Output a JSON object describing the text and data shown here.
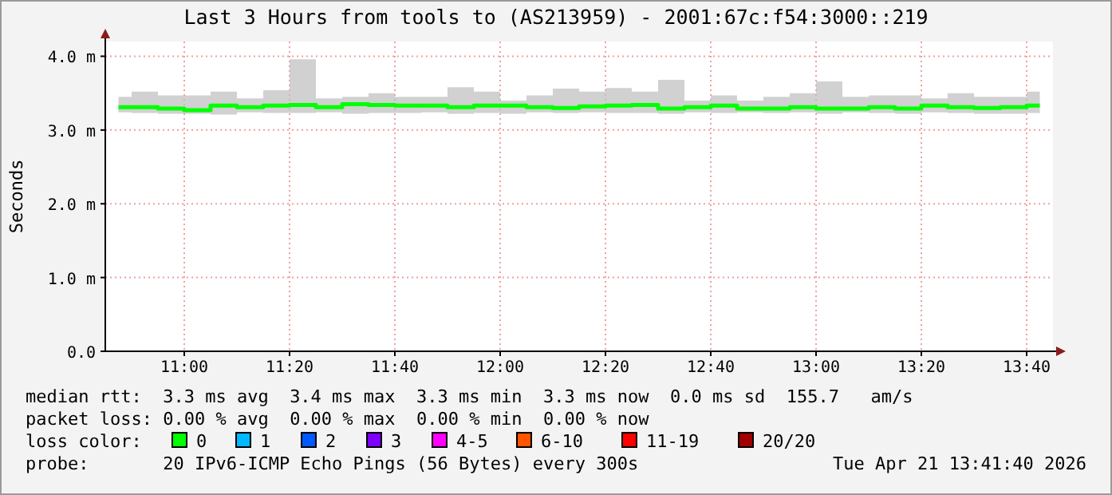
{
  "chart_data": {
    "type": "step",
    "title": "Last 3 Hours from tools to (AS213959) - 2001:67c:f54:3000::219",
    "ylabel": "Seconds",
    "legend_title": "loss color:",
    "legend": "bottom",
    "grid": true,
    "line_style": "solid",
    "xlim": [
      10.75,
      13.75
    ],
    "xticks": [
      {
        "value": 11,
        "label": "11:00"
      },
      {
        "value": 11.3333,
        "label": "11:20"
      },
      {
        "value": 11.6667,
        "label": "11:40"
      },
      {
        "value": 12,
        "label": "12:00"
      },
      {
        "value": 12.3333,
        "label": "12:20"
      },
      {
        "value": 12.6667,
        "label": "12:40"
      },
      {
        "value": 13,
        "label": "13:00"
      },
      {
        "value": 13.3333,
        "label": "13:20"
      },
      {
        "value": 13.6667,
        "label": "13:40"
      }
    ],
    "ylim": [
      0,
      4.2
    ],
    "yticks": [
      {
        "value": 0,
        "label": "0.0"
      },
      {
        "value": 1,
        "label": "1.0 m"
      },
      {
        "value": 2,
        "label": "2.0 m"
      },
      {
        "value": 3,
        "label": "3.0 m"
      },
      {
        "value": 4,
        "label": "4.0 m"
      }
    ],
    "x": [
      10.7917,
      10.875,
      10.9583,
      11.0417,
      11.125,
      11.2083,
      11.2917,
      11.375,
      11.4583,
      11.5417,
      11.625,
      11.7083,
      11.7917,
      11.875,
      11.9583,
      12.0417,
      12.125,
      12.2083,
      12.2917,
      12.375,
      12.4583,
      12.5417,
      12.625,
      12.7083,
      12.7917,
      12.875,
      12.9583,
      13.0417,
      13.125,
      13.2083,
      13.2917,
      13.375,
      13.4583,
      13.5417,
      13.625,
      13.7083
    ],
    "series": [
      {
        "name": "0",
        "color": "#00ff00",
        "values": [
          3.31,
          3.31,
          3.29,
          3.27,
          3.33,
          3.31,
          3.33,
          3.34,
          3.31,
          3.35,
          3.34,
          3.33,
          3.33,
          3.31,
          3.33,
          3.33,
          3.31,
          3.3,
          3.32,
          3.33,
          3.34,
          3.29,
          3.31,
          3.33,
          3.29,
          3.29,
          3.31,
          3.29,
          3.29,
          3.31,
          3.29,
          3.33,
          3.31,
          3.3,
          3.31,
          3.33
        ],
        "lower": [
          3.24,
          3.23,
          3.22,
          3.22,
          3.21,
          3.24,
          3.23,
          3.23,
          3.24,
          3.22,
          3.23,
          3.23,
          3.24,
          3.22,
          3.23,
          3.22,
          3.24,
          3.23,
          3.24,
          3.23,
          3.23,
          3.22,
          3.24,
          3.23,
          3.24,
          3.23,
          3.24,
          3.22,
          3.24,
          3.23,
          3.22,
          3.24,
          3.23,
          3.22,
          3.22,
          3.23
        ],
        "upper": [
          3.45,
          3.52,
          3.47,
          3.47,
          3.52,
          3.43,
          3.54,
          3.96,
          3.43,
          3.45,
          3.5,
          3.45,
          3.45,
          3.58,
          3.52,
          3.4,
          3.47,
          3.56,
          3.52,
          3.57,
          3.52,
          3.68,
          3.4,
          3.47,
          3.4,
          3.45,
          3.5,
          3.66,
          3.45,
          3.47,
          3.47,
          3.43,
          3.5,
          3.45,
          3.45,
          3.52
        ]
      },
      {
        "name": "1",
        "color": "#00b8ff",
        "values": [
          null,
          null,
          null,
          null,
          null,
          null,
          null,
          null,
          null,
          null,
          null,
          null,
          null,
          null,
          null,
          null,
          null,
          null,
          null,
          null,
          null,
          null,
          null,
          null,
          null,
          null,
          null,
          null,
          null,
          null,
          null,
          null,
          null,
          null,
          null,
          null
        ]
      },
      {
        "name": "2",
        "color": "#0059ff",
        "values": [
          null,
          null,
          null,
          null,
          null,
          null,
          null,
          null,
          null,
          null,
          null,
          null,
          null,
          null,
          null,
          null,
          null,
          null,
          null,
          null,
          null,
          null,
          null,
          null,
          null,
          null,
          null,
          null,
          null,
          null,
          null,
          null,
          null,
          null,
          null,
          null
        ]
      },
      {
        "name": "3",
        "color": "#7e00ff",
        "values": [
          null,
          null,
          null,
          null,
          null,
          null,
          null,
          null,
          null,
          null,
          null,
          null,
          null,
          null,
          null,
          null,
          null,
          null,
          null,
          null,
          null,
          null,
          null,
          null,
          null,
          null,
          null,
          null,
          null,
          null,
          null,
          null,
          null,
          null,
          null,
          null
        ]
      },
      {
        "name": "4-5",
        "color": "#ff00ff",
        "values": [
          null,
          null,
          null,
          null,
          null,
          null,
          null,
          null,
          null,
          null,
          null,
          null,
          null,
          null,
          null,
          null,
          null,
          null,
          null,
          null,
          null,
          null,
          null,
          null,
          null,
          null,
          null,
          null,
          null,
          null,
          null,
          null,
          null,
          null,
          null,
          null
        ]
      },
      {
        "name": "6-10",
        "color": "#ff5500",
        "values": [
          null,
          null,
          null,
          null,
          null,
          null,
          null,
          null,
          null,
          null,
          null,
          null,
          null,
          null,
          null,
          null,
          null,
          null,
          null,
          null,
          null,
          null,
          null,
          null,
          null,
          null,
          null,
          null,
          null,
          null,
          null,
          null,
          null,
          null,
          null,
          null
        ]
      },
      {
        "name": "11-19",
        "color": "#ff0000",
        "values": [
          null,
          null,
          null,
          null,
          null,
          null,
          null,
          null,
          null,
          null,
          null,
          null,
          null,
          null,
          null,
          null,
          null,
          null,
          null,
          null,
          null,
          null,
          null,
          null,
          null,
          null,
          null,
          null,
          null,
          null,
          null,
          null,
          null,
          null,
          null,
          null
        ]
      },
      {
        "name": "20/20",
        "color": "#a10000",
        "values": [
          null,
          null,
          null,
          null,
          null,
          null,
          null,
          null,
          null,
          null,
          null,
          null,
          null,
          null,
          null,
          null,
          null,
          null,
          null,
          null,
          null,
          null,
          null,
          null,
          null,
          null,
          null,
          null,
          null,
          null,
          null,
          null,
          null,
          null,
          null,
          null
        ]
      }
    ],
    "annotations": [
      "median rtt:  3.3 ms avg  3.4 ms max  3.3 ms min  3.3 ms now  0.0 ms sd  155.7   am/s",
      "packet loss: 0.00 % avg  0.00 % max  0.00 % min  0.00 % now",
      "probe:       20 IPv6-ICMP Echo Pings (56 Bytes) every 300s",
      "Tue Apr 21 13:41:40 2026"
    ]
  }
}
